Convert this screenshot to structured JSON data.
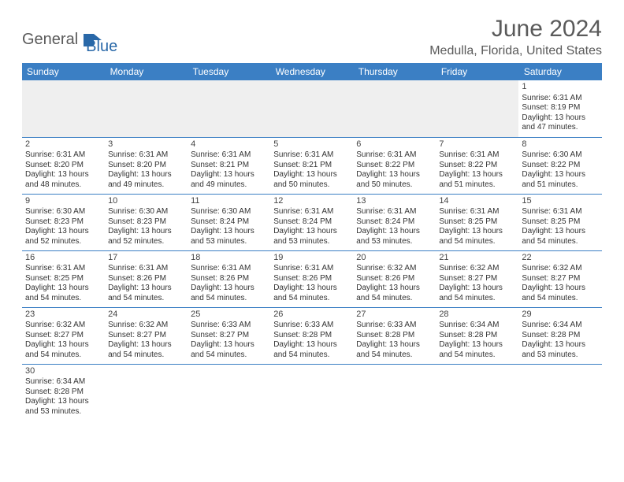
{
  "logo": {
    "general": "General",
    "blue": "Blue"
  },
  "title": "June 2024",
  "location": "Medulla, Florida, United States",
  "colors": {
    "header_bg": "#3b7fc4",
    "header_text": "#ffffff",
    "body_text": "#333333",
    "title_text": "#5a5a5a",
    "logo_blue": "#2968a8",
    "blank_bg": "#efefef",
    "border": "#3b7fc4"
  },
  "days_of_week": [
    "Sunday",
    "Monday",
    "Tuesday",
    "Wednesday",
    "Thursday",
    "Friday",
    "Saturday"
  ],
  "weeks": [
    [
      null,
      null,
      null,
      null,
      null,
      null,
      {
        "n": "1",
        "sr": "Sunrise: 6:31 AM",
        "ss": "Sunset: 8:19 PM",
        "dl1": "Daylight: 13 hours",
        "dl2": "and 47 minutes."
      }
    ],
    [
      {
        "n": "2",
        "sr": "Sunrise: 6:31 AM",
        "ss": "Sunset: 8:20 PM",
        "dl1": "Daylight: 13 hours",
        "dl2": "and 48 minutes."
      },
      {
        "n": "3",
        "sr": "Sunrise: 6:31 AM",
        "ss": "Sunset: 8:20 PM",
        "dl1": "Daylight: 13 hours",
        "dl2": "and 49 minutes."
      },
      {
        "n": "4",
        "sr": "Sunrise: 6:31 AM",
        "ss": "Sunset: 8:21 PM",
        "dl1": "Daylight: 13 hours",
        "dl2": "and 49 minutes."
      },
      {
        "n": "5",
        "sr": "Sunrise: 6:31 AM",
        "ss": "Sunset: 8:21 PM",
        "dl1": "Daylight: 13 hours",
        "dl2": "and 50 minutes."
      },
      {
        "n": "6",
        "sr": "Sunrise: 6:31 AM",
        "ss": "Sunset: 8:22 PM",
        "dl1": "Daylight: 13 hours",
        "dl2": "and 50 minutes."
      },
      {
        "n": "7",
        "sr": "Sunrise: 6:31 AM",
        "ss": "Sunset: 8:22 PM",
        "dl1": "Daylight: 13 hours",
        "dl2": "and 51 minutes."
      },
      {
        "n": "8",
        "sr": "Sunrise: 6:30 AM",
        "ss": "Sunset: 8:22 PM",
        "dl1": "Daylight: 13 hours",
        "dl2": "and 51 minutes."
      }
    ],
    [
      {
        "n": "9",
        "sr": "Sunrise: 6:30 AM",
        "ss": "Sunset: 8:23 PM",
        "dl1": "Daylight: 13 hours",
        "dl2": "and 52 minutes."
      },
      {
        "n": "10",
        "sr": "Sunrise: 6:30 AM",
        "ss": "Sunset: 8:23 PM",
        "dl1": "Daylight: 13 hours",
        "dl2": "and 52 minutes."
      },
      {
        "n": "11",
        "sr": "Sunrise: 6:30 AM",
        "ss": "Sunset: 8:24 PM",
        "dl1": "Daylight: 13 hours",
        "dl2": "and 53 minutes."
      },
      {
        "n": "12",
        "sr": "Sunrise: 6:31 AM",
        "ss": "Sunset: 8:24 PM",
        "dl1": "Daylight: 13 hours",
        "dl2": "and 53 minutes."
      },
      {
        "n": "13",
        "sr": "Sunrise: 6:31 AM",
        "ss": "Sunset: 8:24 PM",
        "dl1": "Daylight: 13 hours",
        "dl2": "and 53 minutes."
      },
      {
        "n": "14",
        "sr": "Sunrise: 6:31 AM",
        "ss": "Sunset: 8:25 PM",
        "dl1": "Daylight: 13 hours",
        "dl2": "and 54 minutes."
      },
      {
        "n": "15",
        "sr": "Sunrise: 6:31 AM",
        "ss": "Sunset: 8:25 PM",
        "dl1": "Daylight: 13 hours",
        "dl2": "and 54 minutes."
      }
    ],
    [
      {
        "n": "16",
        "sr": "Sunrise: 6:31 AM",
        "ss": "Sunset: 8:25 PM",
        "dl1": "Daylight: 13 hours",
        "dl2": "and 54 minutes."
      },
      {
        "n": "17",
        "sr": "Sunrise: 6:31 AM",
        "ss": "Sunset: 8:26 PM",
        "dl1": "Daylight: 13 hours",
        "dl2": "and 54 minutes."
      },
      {
        "n": "18",
        "sr": "Sunrise: 6:31 AM",
        "ss": "Sunset: 8:26 PM",
        "dl1": "Daylight: 13 hours",
        "dl2": "and 54 minutes."
      },
      {
        "n": "19",
        "sr": "Sunrise: 6:31 AM",
        "ss": "Sunset: 8:26 PM",
        "dl1": "Daylight: 13 hours",
        "dl2": "and 54 minutes."
      },
      {
        "n": "20",
        "sr": "Sunrise: 6:32 AM",
        "ss": "Sunset: 8:26 PM",
        "dl1": "Daylight: 13 hours",
        "dl2": "and 54 minutes."
      },
      {
        "n": "21",
        "sr": "Sunrise: 6:32 AM",
        "ss": "Sunset: 8:27 PM",
        "dl1": "Daylight: 13 hours",
        "dl2": "and 54 minutes."
      },
      {
        "n": "22",
        "sr": "Sunrise: 6:32 AM",
        "ss": "Sunset: 8:27 PM",
        "dl1": "Daylight: 13 hours",
        "dl2": "and 54 minutes."
      }
    ],
    [
      {
        "n": "23",
        "sr": "Sunrise: 6:32 AM",
        "ss": "Sunset: 8:27 PM",
        "dl1": "Daylight: 13 hours",
        "dl2": "and 54 minutes."
      },
      {
        "n": "24",
        "sr": "Sunrise: 6:32 AM",
        "ss": "Sunset: 8:27 PM",
        "dl1": "Daylight: 13 hours",
        "dl2": "and 54 minutes."
      },
      {
        "n": "25",
        "sr": "Sunrise: 6:33 AM",
        "ss": "Sunset: 8:27 PM",
        "dl1": "Daylight: 13 hours",
        "dl2": "and 54 minutes."
      },
      {
        "n": "26",
        "sr": "Sunrise: 6:33 AM",
        "ss": "Sunset: 8:28 PM",
        "dl1": "Daylight: 13 hours",
        "dl2": "and 54 minutes."
      },
      {
        "n": "27",
        "sr": "Sunrise: 6:33 AM",
        "ss": "Sunset: 8:28 PM",
        "dl1": "Daylight: 13 hours",
        "dl2": "and 54 minutes."
      },
      {
        "n": "28",
        "sr": "Sunrise: 6:34 AM",
        "ss": "Sunset: 8:28 PM",
        "dl1": "Daylight: 13 hours",
        "dl2": "and 54 minutes."
      },
      {
        "n": "29",
        "sr": "Sunrise: 6:34 AM",
        "ss": "Sunset: 8:28 PM",
        "dl1": "Daylight: 13 hours",
        "dl2": "and 53 minutes."
      }
    ],
    [
      {
        "n": "30",
        "sr": "Sunrise: 6:34 AM",
        "ss": "Sunset: 8:28 PM",
        "dl1": "Daylight: 13 hours",
        "dl2": "and 53 minutes."
      },
      null,
      null,
      null,
      null,
      null,
      null
    ]
  ]
}
